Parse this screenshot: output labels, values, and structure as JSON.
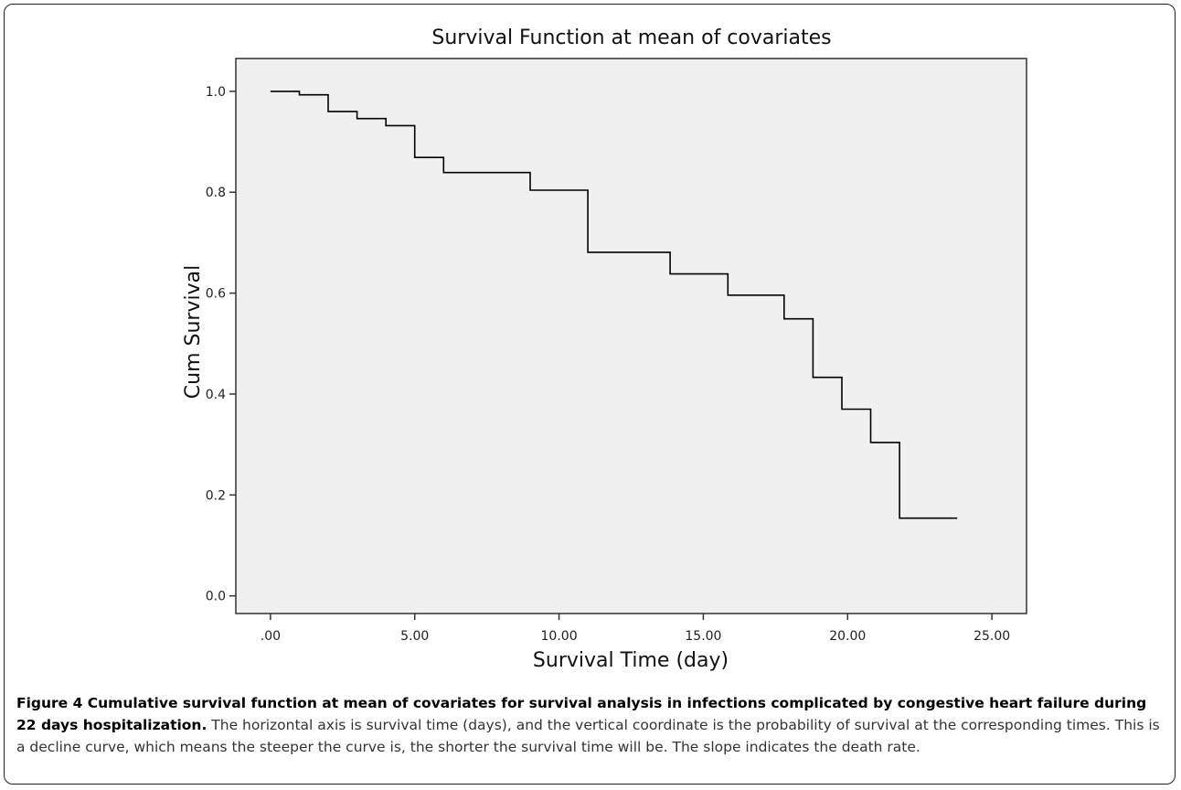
{
  "chart_data": {
    "type": "line",
    "step": true,
    "title": "Survival Function at mean of covariates",
    "xlabel": "Survival Time (day)",
    "ylabel": "Cum Survival",
    "xlim": [
      -1.2,
      26.2
    ],
    "ylim": [
      -0.035,
      1.065
    ],
    "xticks": [
      0,
      5,
      10,
      15,
      20,
      25
    ],
    "xtick_labels": [
      ".00",
      "5.00",
      "10.00",
      "15.00",
      "20.00",
      "25.00"
    ],
    "yticks": [
      0.0,
      0.2,
      0.4,
      0.6,
      0.8,
      1.0
    ],
    "ytick_labels": [
      "0.0",
      "0.2",
      "0.4",
      "0.6",
      "0.8",
      "1.0"
    ],
    "grid": false,
    "legend": "none",
    "plot_background": "#f0f0f0",
    "line_color": "#000000",
    "series": [
      {
        "x": [
          0,
          1,
          2,
          3,
          4,
          5,
          6,
          9,
          11,
          13.85,
          15.85,
          17.8,
          18.8,
          19.8,
          20.8,
          21.8,
          23.8
        ],
        "y": [
          1.0,
          0.993,
          0.96,
          0.946,
          0.932,
          0.869,
          0.839,
          0.804,
          0.681,
          0.638,
          0.596,
          0.549,
          0.433,
          0.37,
          0.304,
          0.154,
          0.154
        ]
      }
    ]
  },
  "caption": {
    "bold": "Figure 4 Cumulative survival function at mean of covariates for survival analysis in infections complicated by congestive heart failure during 22 days hospitalization.",
    "text": " The horizontal axis is survival time (days), and the vertical coordinate is the probability of survival at the corresponding times. This is a decline curve, which means the steeper the curve is, the shorter the survival time will be. The slope indicates the death rate."
  }
}
